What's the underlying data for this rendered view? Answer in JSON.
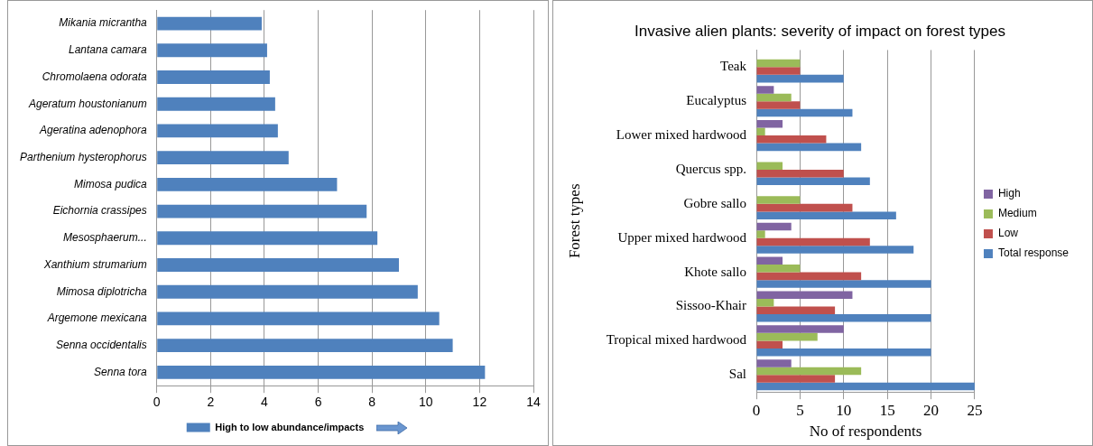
{
  "chart_data": [
    {
      "type": "bar",
      "orientation": "horizontal",
      "categories": [
        "Mikania micrantha",
        "Lantana camara",
        "Chromolaena odorata",
        "Ageratum houstonianum",
        "Ageratina adenophora",
        "Parthenium hysterophorus",
        "Mimosa pudica",
        "Eichornia crassipes",
        "Mesosphaerum...",
        "Xanthium strumarium",
        "Mimosa diplotricha",
        "Argemone mexicana",
        "Senna occidentalis",
        "Senna tora"
      ],
      "series": [
        {
          "name": "High to low abundance/impacts",
          "color": "#4f81bd",
          "values": [
            3.9,
            4.1,
            4.2,
            4.4,
            4.5,
            4.9,
            6.7,
            7.8,
            8.2,
            9.0,
            9.7,
            10.5,
            11.0,
            12.2
          ]
        }
      ],
      "xlim": [
        0,
        14
      ],
      "xticks": [
        0,
        2,
        4,
        6,
        8,
        10,
        12,
        14
      ],
      "grid": "x",
      "legend": "bottom"
    },
    {
      "type": "bar",
      "orientation": "horizontal",
      "title": "Invasive alien plants: severity of impact on forest types",
      "xlabel": "No of respondents",
      "ylabel": "Forest types",
      "categories": [
        "Teak",
        "Eucalyptus",
        "Lower mixed hardwood",
        "Quercus spp.",
        "Gobre sallo",
        "Upper mixed hardwood",
        "Khote sallo",
        "Sissoo-Khair",
        "Tropical mixed hardwood",
        "Sal"
      ],
      "series": [
        {
          "name": "High",
          "color": "#8064a2",
          "values": [
            0,
            2,
            3,
            0,
            0,
            4,
            3,
            11,
            10,
            4
          ]
        },
        {
          "name": "Medium",
          "color": "#9bbb59",
          "values": [
            5,
            4,
            1,
            3,
            5,
            1,
            5,
            2,
            7,
            12
          ]
        },
        {
          "name": "Low",
          "color": "#c0504d",
          "values": [
            5,
            5,
            8,
            10,
            11,
            13,
            12,
            9,
            3,
            9
          ]
        },
        {
          "name": "Total response",
          "color": "#4f81bd",
          "values": [
            10,
            11,
            12,
            13,
            16,
            18,
            20,
            20,
            20,
            25
          ]
        }
      ],
      "xlim": [
        0,
        25
      ],
      "xticks": [
        0,
        5,
        10,
        15,
        20,
        25
      ],
      "grid": "x",
      "legend": "right"
    }
  ]
}
